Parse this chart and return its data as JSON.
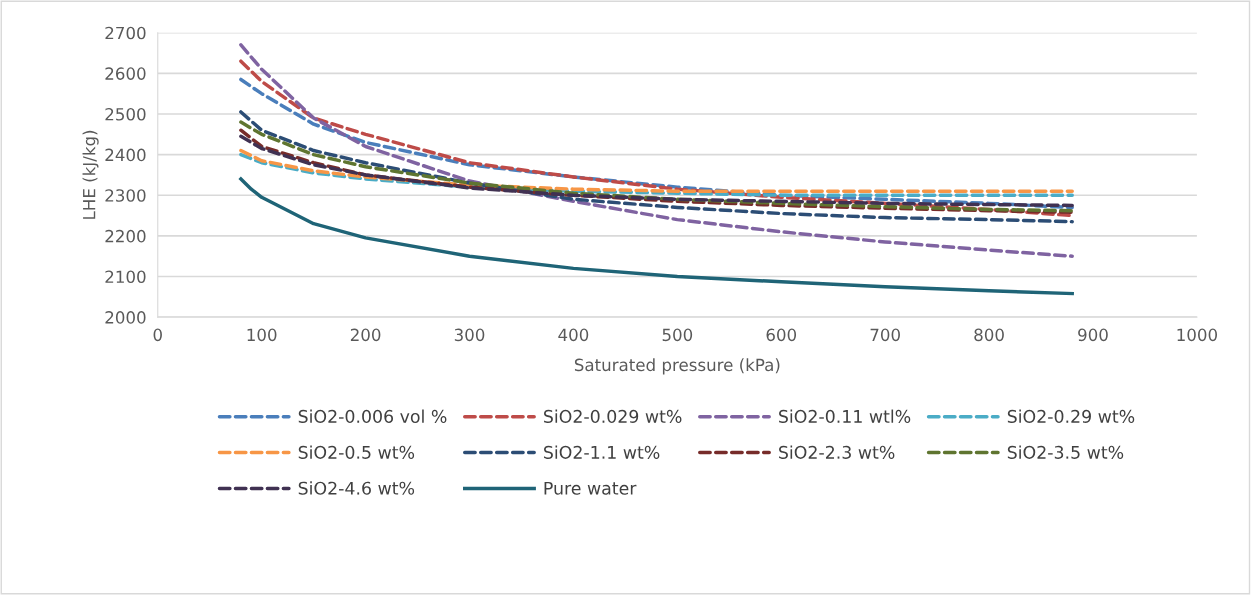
{
  "chart_data": {
    "type": "line",
    "xlabel": "Saturated pressure (kPa)",
    "ylabel": "LHE (kJ/kg)",
    "xlim": [
      0,
      1000
    ],
    "xticks": [
      0,
      100,
      200,
      300,
      400,
      500,
      600,
      700,
      800,
      900,
      1000
    ],
    "ylim": [
      2000,
      2700
    ],
    "yticks": [
      2000,
      2100,
      2200,
      2300,
      2400,
      2500,
      2600,
      2700
    ],
    "grid": "y",
    "legend": "bottom",
    "marker": "none",
    "x": [
      80,
      100,
      150,
      200,
      300,
      400,
      500,
      600,
      700,
      800,
      880
    ],
    "series": [
      {
        "name": "SiO2-0.006 vol %",
        "color": "#4a7ebb",
        "line_style": "dashed",
        "values": [
          2585,
          2550,
          2475,
          2430,
          2375,
          2345,
          2320,
          2300,
          2290,
          2280,
          2270
        ]
      },
      {
        "name": "SiO2-0.029 wt%",
        "color": "#be4b48",
        "line_style": "dashed",
        "values": [
          2630,
          2580,
          2490,
          2450,
          2380,
          2345,
          2315,
          2295,
          2280,
          2265,
          2250
        ]
      },
      {
        "name": "SiO2-0.11 wtl%",
        "color": "#7f63a1",
        "line_style": "dashed",
        "values": [
          2670,
          2610,
          2490,
          2420,
          2335,
          2285,
          2240,
          2210,
          2185,
          2165,
          2150
        ]
      },
      {
        "name": "SiO2-0.29 wt%",
        "color": "#4bacc6",
        "line_style": "dashed",
        "values": [
          2400,
          2380,
          2355,
          2340,
          2320,
          2310,
          2305,
          2300,
          2300,
          2300,
          2300
        ]
      },
      {
        "name": "SiO2-0.5 wt%",
        "color": "#f79646",
        "line_style": "dashed",
        "values": [
          2410,
          2385,
          2360,
          2345,
          2325,
          2315,
          2310,
          2310,
          2310,
          2310,
          2310
        ]
      },
      {
        "name": "SiO2-1.1 wt%",
        "color": "#2c4d75",
        "line_style": "dashed",
        "values": [
          2505,
          2460,
          2410,
          2380,
          2330,
          2290,
          2270,
          2255,
          2245,
          2240,
          2235
        ]
      },
      {
        "name": "SiO2-2.3 wt%",
        "color": "#772c2a",
        "line_style": "dashed",
        "values": [
          2460,
          2420,
          2380,
          2350,
          2320,
          2300,
          2285,
          2275,
          2268,
          2262,
          2258
        ]
      },
      {
        "name": "SiO2-3.5 wt%",
        "color": "#5f7530",
        "line_style": "dashed",
        "values": [
          2480,
          2450,
          2400,
          2370,
          2330,
          2305,
          2290,
          2280,
          2272,
          2265,
          2262
        ]
      },
      {
        "name": "SiO2-4.6 wt%",
        "color": "#403152",
        "line_style": "dashed",
        "values": [
          2445,
          2415,
          2375,
          2350,
          2318,
          2300,
          2290,
          2285,
          2280,
          2277,
          2275
        ]
      },
      {
        "name": "Pure water",
        "color": "#1f6477",
        "line_style": "solid",
        "x": [
          80,
          90,
          100,
          150,
          200,
          300,
          400,
          500,
          600,
          700,
          800,
          880
        ],
        "values": [
          2340,
          2315,
          2295,
          2230,
          2195,
          2150,
          2120,
          2100,
          2087,
          2075,
          2065,
          2058
        ]
      }
    ]
  }
}
